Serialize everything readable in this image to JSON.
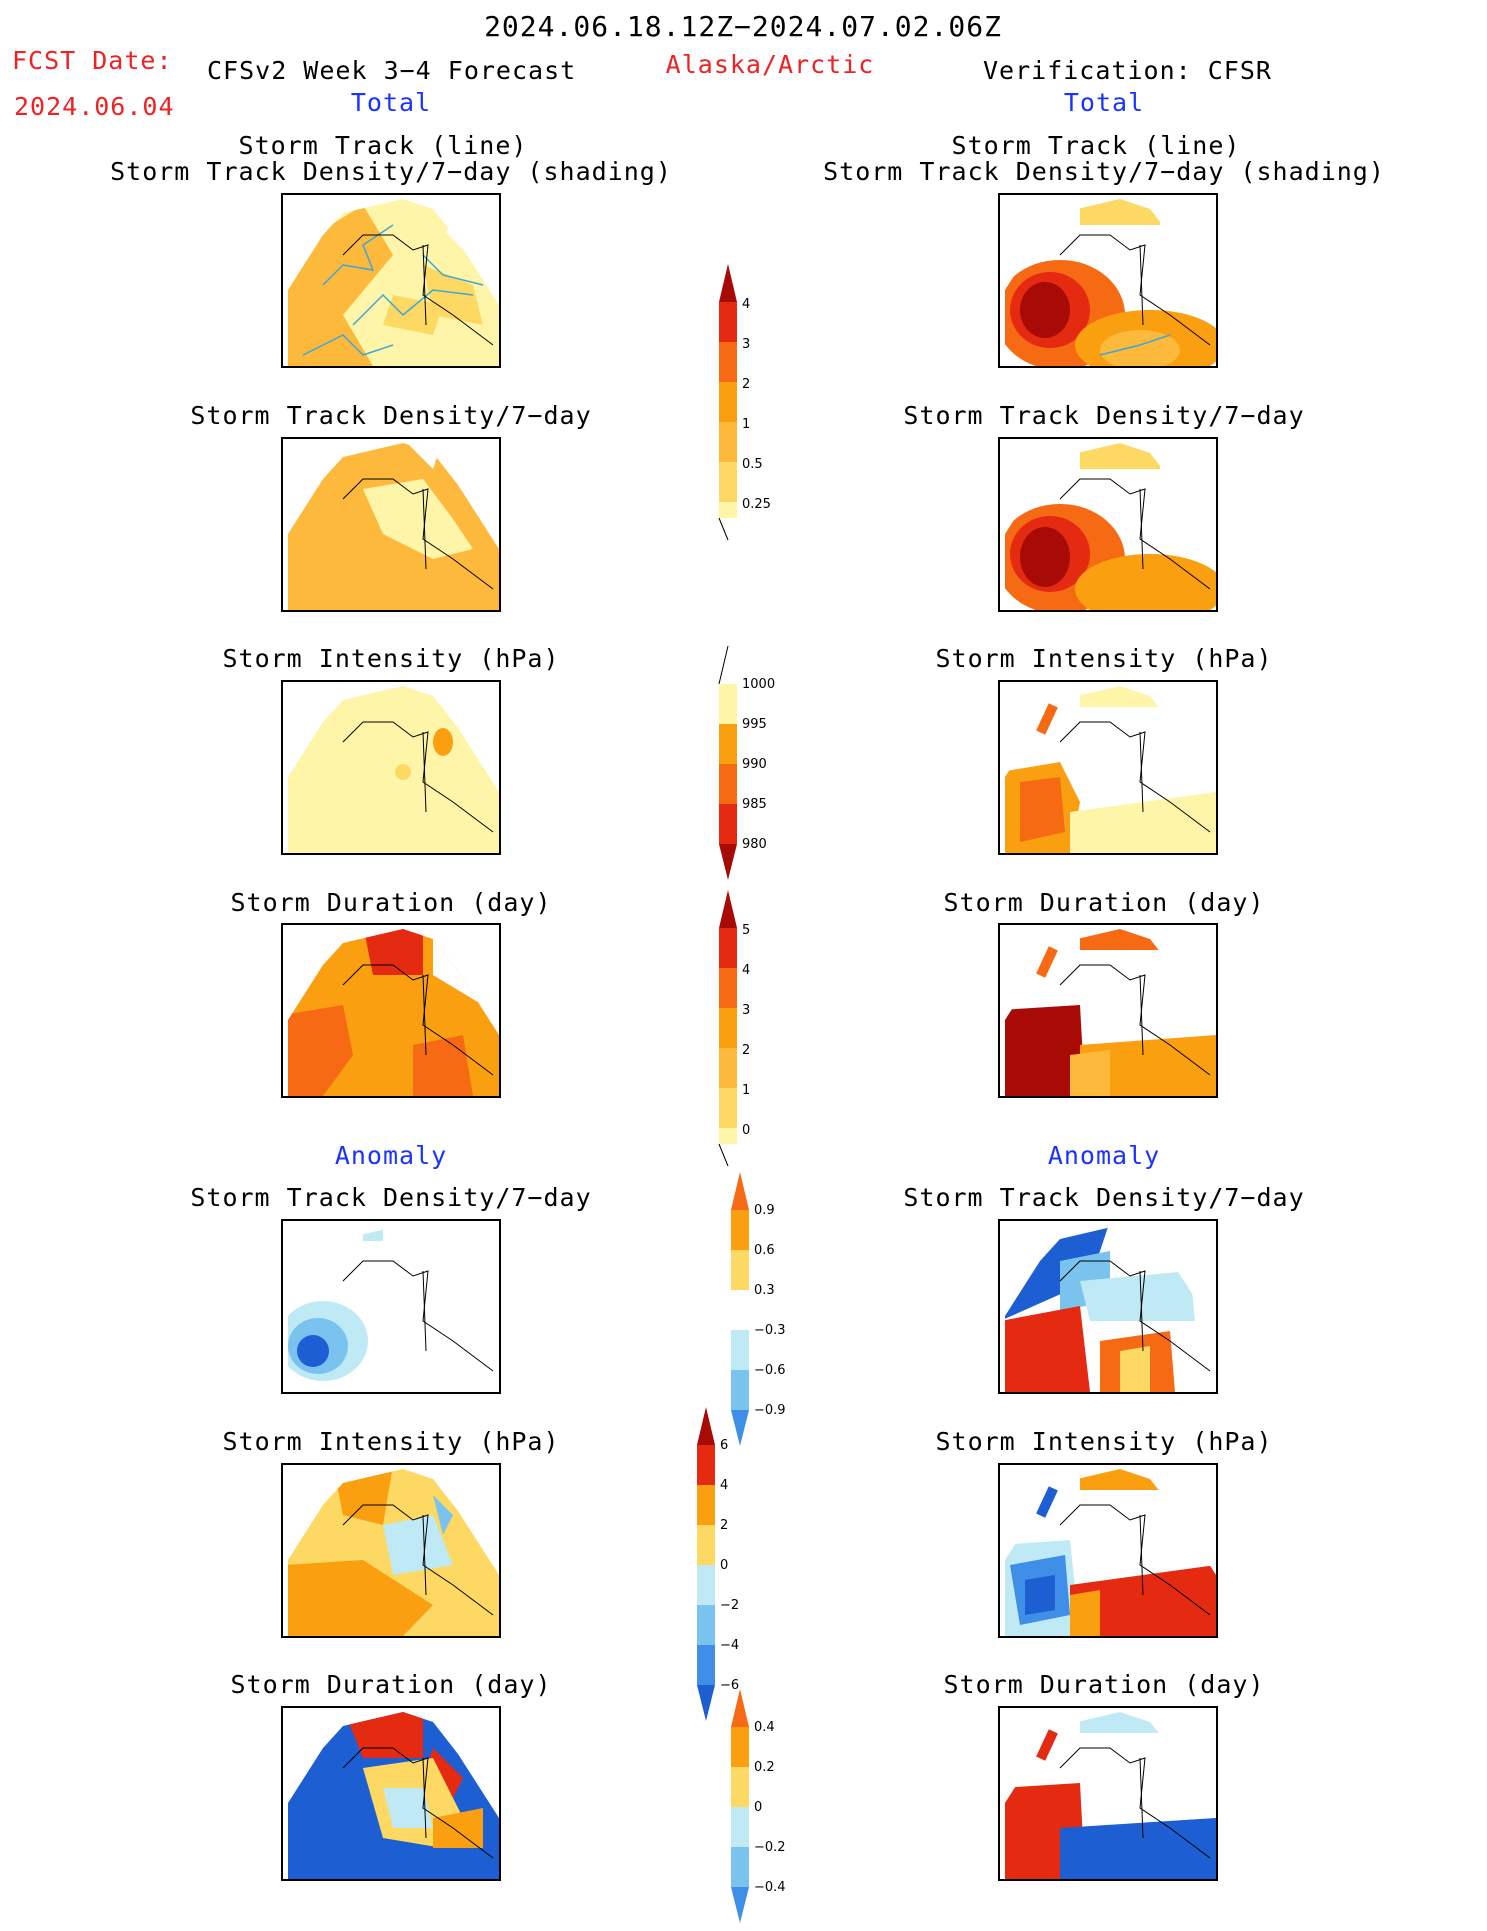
{
  "header": {
    "period": "2024.06.18.12Z−2024.07.02.06Z",
    "fcst_label": "FCST Date:",
    "fcst_date": "2024.06.04",
    "model_title": "CFSv2 Week 3−4 Forecast",
    "region": "Alaska/Arctic",
    "verification": "Verification: CFSR",
    "left_total": "Total",
    "right_total": "Total",
    "left_anomaly": "Anomaly",
    "right_anomaly": "Anomaly"
  },
  "panel_titles": {
    "track_line": "Storm Track (line)",
    "track_shading": "Storm Track Density/7−day (shading)",
    "density": "Storm Track Density/7−day",
    "intensity": "Storm Intensity (hPa)",
    "duration": "Storm Duration (day)"
  },
  "colorbars": {
    "density_total": [
      "4",
      "3",
      "2",
      "1",
      "0.5",
      "0.25"
    ],
    "intensity_total": [
      "1000",
      "995",
      "990",
      "985",
      "980"
    ],
    "duration_total": [
      "5",
      "4",
      "3",
      "2",
      "1",
      "0"
    ],
    "density_anom": [
      "0.9",
      "0.6",
      "0.3",
      "−0.3",
      "−0.6",
      "−0.9"
    ],
    "intensity_anom": [
      "6",
      "4",
      "2",
      "0",
      "−2",
      "−4",
      "−6"
    ],
    "duration_anom": [
      "0.4",
      "0.2",
      "0",
      "−0.2",
      "−0.4"
    ]
  },
  "colors": {
    "yellow_light": "#fff5a8",
    "yellow": "#fdd863",
    "orange_light": "#fcb93c",
    "orange": "#fa9f0f",
    "orange_red": "#f66a14",
    "red": "#e52a12",
    "dark_red": "#a80a06",
    "blue_light": "#bfe9f5",
    "blue": "#7ac3ee",
    "blue_mid": "#3f8ee8",
    "blue_dark": "#1d5fd3",
    "track_line": "#3aa8d8"
  }
}
